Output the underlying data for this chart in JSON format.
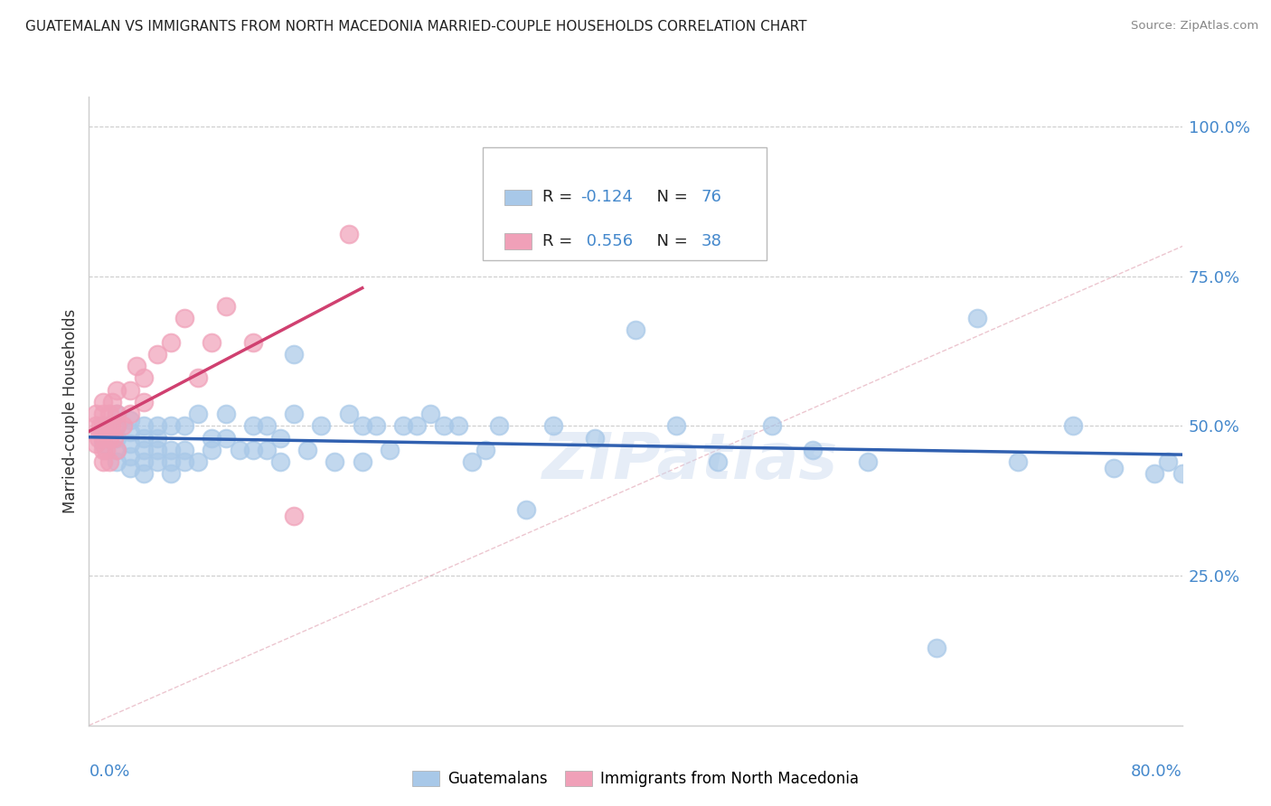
{
  "title": "GUATEMALAN VS IMMIGRANTS FROM NORTH MACEDONIA MARRIED-COUPLE HOUSEHOLDS CORRELATION CHART",
  "source": "Source: ZipAtlas.com",
  "ylabel": "Married-couple Households",
  "watermark": "ZIPatlas",
  "xmin": 0.0,
  "xmax": 0.8,
  "ymin": 0.0,
  "ymax": 1.05,
  "yticks": [
    0.25,
    0.5,
    0.75,
    1.0
  ],
  "ytick_labels": [
    "25.0%",
    "50.0%",
    "75.0%",
    "100.0%"
  ],
  "blue_R": -0.124,
  "blue_N": 76,
  "pink_R": 0.556,
  "pink_N": 38,
  "blue_color": "#a8c8e8",
  "pink_color": "#f0a0b8",
  "blue_line_color": "#3060b0",
  "pink_line_color": "#d04070",
  "legend_label_blue": "Guatemalans",
  "legend_label_pink": "Immigrants from North Macedonia",
  "blue_x": [
    0.01,
    0.01,
    0.02,
    0.02,
    0.02,
    0.02,
    0.02,
    0.03,
    0.03,
    0.03,
    0.03,
    0.03,
    0.04,
    0.04,
    0.04,
    0.04,
    0.04,
    0.05,
    0.05,
    0.05,
    0.05,
    0.06,
    0.06,
    0.06,
    0.06,
    0.07,
    0.07,
    0.07,
    0.08,
    0.08,
    0.09,
    0.09,
    0.1,
    0.1,
    0.11,
    0.12,
    0.12,
    0.13,
    0.13,
    0.14,
    0.14,
    0.15,
    0.15,
    0.16,
    0.17,
    0.18,
    0.19,
    0.2,
    0.2,
    0.21,
    0.22,
    0.23,
    0.24,
    0.25,
    0.26,
    0.27,
    0.28,
    0.29,
    0.3,
    0.32,
    0.34,
    0.37,
    0.4,
    0.43,
    0.46,
    0.5,
    0.53,
    0.57,
    0.62,
    0.65,
    0.68,
    0.72,
    0.75,
    0.78,
    0.79,
    0.8
  ],
  "blue_y": [
    0.47,
    0.5,
    0.44,
    0.46,
    0.48,
    0.5,
    0.52,
    0.43,
    0.45,
    0.47,
    0.49,
    0.51,
    0.42,
    0.44,
    0.46,
    0.48,
    0.5,
    0.44,
    0.46,
    0.48,
    0.5,
    0.42,
    0.44,
    0.46,
    0.5,
    0.44,
    0.46,
    0.5,
    0.44,
    0.52,
    0.46,
    0.48,
    0.48,
    0.52,
    0.46,
    0.46,
    0.5,
    0.46,
    0.5,
    0.44,
    0.48,
    0.52,
    0.62,
    0.46,
    0.5,
    0.44,
    0.52,
    0.44,
    0.5,
    0.5,
    0.46,
    0.5,
    0.5,
    0.52,
    0.5,
    0.5,
    0.44,
    0.46,
    0.5,
    0.36,
    0.5,
    0.48,
    0.66,
    0.5,
    0.44,
    0.5,
    0.46,
    0.44,
    0.13,
    0.68,
    0.44,
    0.5,
    0.43,
    0.42,
    0.44,
    0.42
  ],
  "pink_x": [
    0.005,
    0.005,
    0.005,
    0.007,
    0.008,
    0.01,
    0.01,
    0.01,
    0.01,
    0.01,
    0.01,
    0.012,
    0.012,
    0.015,
    0.015,
    0.015,
    0.016,
    0.017,
    0.018,
    0.02,
    0.02,
    0.02,
    0.02,
    0.025,
    0.03,
    0.03,
    0.035,
    0.04,
    0.04,
    0.05,
    0.06,
    0.07,
    0.08,
    0.09,
    0.1,
    0.12,
    0.15,
    0.19
  ],
  "pink_y": [
    0.47,
    0.5,
    0.52,
    0.48,
    0.5,
    0.44,
    0.46,
    0.48,
    0.5,
    0.52,
    0.54,
    0.46,
    0.5,
    0.44,
    0.48,
    0.52,
    0.5,
    0.54,
    0.48,
    0.46,
    0.5,
    0.52,
    0.56,
    0.5,
    0.52,
    0.56,
    0.6,
    0.54,
    0.58,
    0.62,
    0.64,
    0.68,
    0.58,
    0.64,
    0.7,
    0.64,
    0.35,
    0.82
  ]
}
